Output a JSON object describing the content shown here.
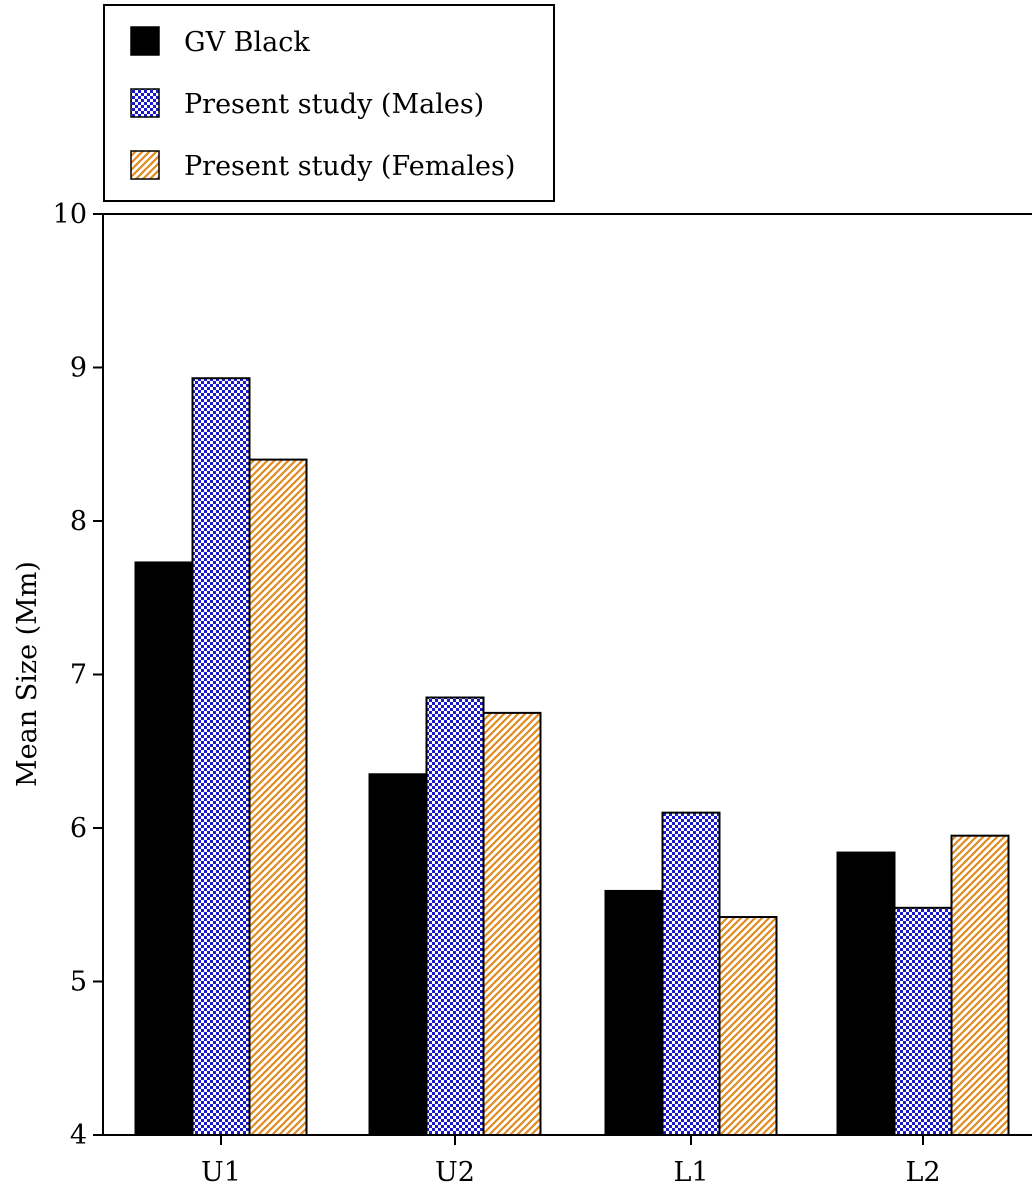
{
  "chart_data": {
    "type": "bar",
    "title": "",
    "xlabel": "",
    "ylabel": "Mean Size (Mm)",
    "ylim": [
      4,
      10
    ],
    "yticks": [
      4,
      5,
      6,
      7,
      8,
      9,
      10
    ],
    "grid": false,
    "legend_position": "top-left",
    "categories": [
      "U1",
      "U2",
      "L1",
      "L2"
    ],
    "series": [
      {
        "name": "GV Black",
        "values": [
          7.73,
          6.35,
          5.59,
          5.84
        ],
        "color": "#000000",
        "pattern": "solid"
      },
      {
        "name": "Present study (Males)",
        "values": [
          8.93,
          6.85,
          6.1,
          5.48
        ],
        "color": "#1a1acc",
        "pattern": "checker"
      },
      {
        "name": "Present study (Females)",
        "values": [
          8.4,
          6.75,
          5.42,
          5.95
        ],
        "color": "#e08a20",
        "pattern": "diagonal-hatch"
      }
    ]
  }
}
